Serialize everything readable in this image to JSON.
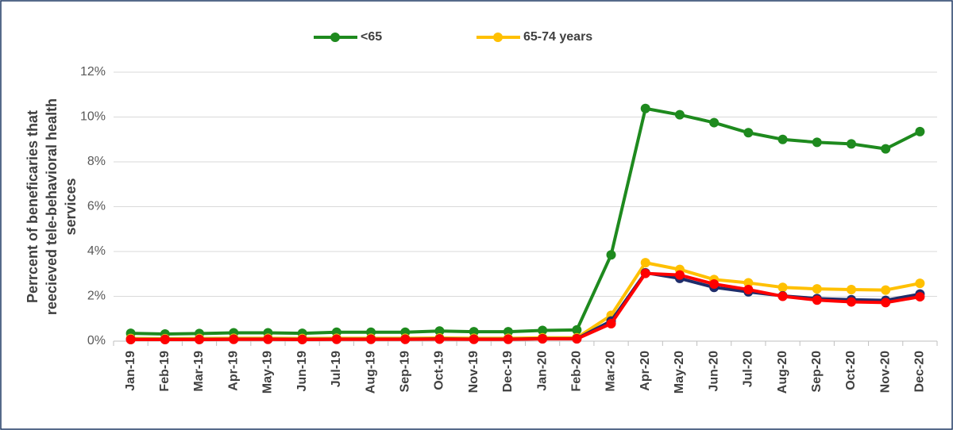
{
  "chart_data": {
    "type": "line",
    "ylabel": [
      "Perrcent of beneficaries that",
      "reecieved tele-behavioral health",
      "services"
    ],
    "categories": [
      "Jan-19",
      "Feb-19",
      "Mar-19",
      "Apr-19",
      "May-19",
      "Jun-19",
      "Jul-19",
      "Aug-19",
      "Sep-19",
      "Oct-19",
      "Nov-19",
      "Dec-19",
      "Jan-20",
      "Feb-20",
      "Mar-20",
      "Apr-20",
      "May-20",
      "Jun-20",
      "Jul-20",
      "Aug-20",
      "Sep-20",
      "Oct-20",
      "Nov-20",
      "Dec-20"
    ],
    "series": [
      {
        "name": "<65",
        "color": "#1e8a1e",
        "values": [
          0.35,
          0.32,
          0.34,
          0.37,
          0.37,
          0.35,
          0.4,
          0.4,
          0.4,
          0.45,
          0.42,
          0.42,
          0.48,
          0.5,
          3.85,
          10.38,
          10.1,
          9.75,
          9.3,
          9.0,
          8.87,
          8.8,
          8.58,
          9.35
        ]
      },
      {
        "name": "65-74 years",
        "color": "#ffc000",
        "values": [
          0.12,
          0.11,
          0.12,
          0.13,
          0.13,
          0.12,
          0.13,
          0.13,
          0.13,
          0.14,
          0.13,
          0.13,
          0.15,
          0.15,
          1.15,
          3.5,
          3.2,
          2.75,
          2.6,
          2.4,
          2.33,
          2.3,
          2.28,
          2.58
        ]
      },
      {
        "color": "#1f2d6b",
        "values": [
          0.08,
          0.08,
          0.08,
          0.09,
          0.09,
          0.08,
          0.09,
          0.09,
          0.09,
          0.1,
          0.09,
          0.09,
          0.11,
          0.11,
          0.9,
          3.05,
          2.8,
          2.4,
          2.2,
          2.02,
          1.9,
          1.85,
          1.82,
          2.1
        ]
      },
      {
        "color": "#ff0000",
        "values": [
          0.07,
          0.07,
          0.07,
          0.08,
          0.08,
          0.07,
          0.08,
          0.08,
          0.08,
          0.09,
          0.08,
          0.08,
          0.1,
          0.1,
          0.78,
          3.02,
          2.95,
          2.55,
          2.3,
          2.0,
          1.83,
          1.75,
          1.72,
          1.98
        ]
      }
    ],
    "ylim": [
      0,
      12
    ],
    "yticks": [
      {
        "value": 0,
        "label": "0%"
      },
      {
        "value": 2,
        "label": "2%"
      },
      {
        "value": 4,
        "label": "4%"
      },
      {
        "value": 6,
        "label": "6%"
      },
      {
        "value": 8,
        "label": "8%"
      },
      {
        "value": 10,
        "label": "10%"
      },
      {
        "value": 12,
        "label": "12%"
      }
    ],
    "grid": true,
    "legend": "top"
  }
}
